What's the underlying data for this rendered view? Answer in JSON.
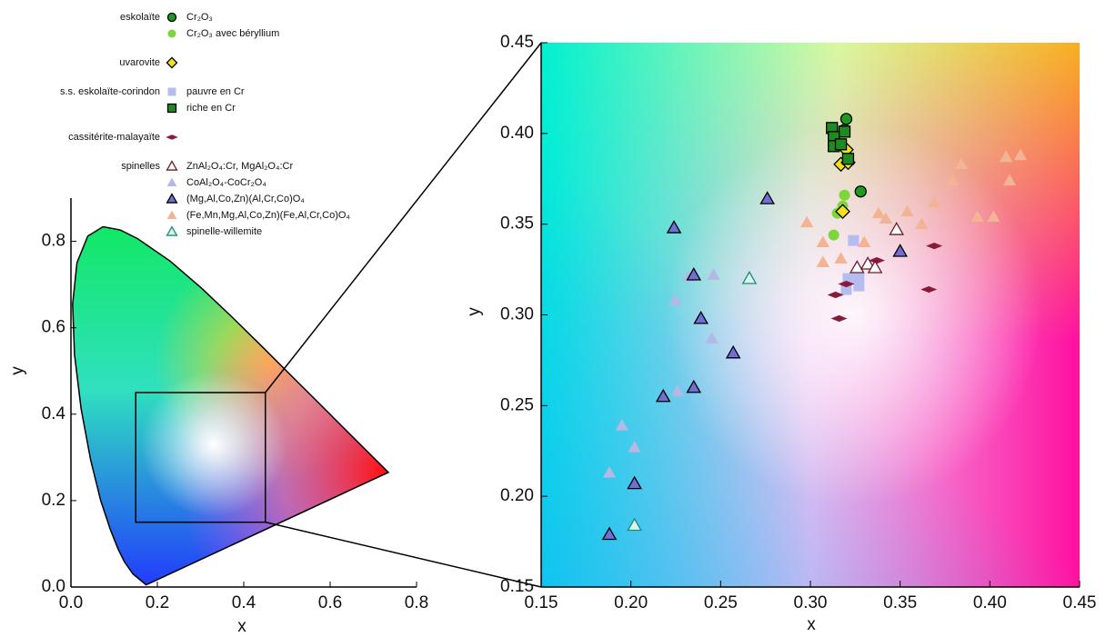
{
  "chart_data": [
    {
      "type": "line",
      "xlabel": "x",
      "ylabel": "y",
      "x": [
        0.1741,
        0.144,
        0.1241,
        0.1096,
        0.0913,
        0.0687,
        0.0454,
        0.0235,
        0.0082,
        0.0039,
        0.0139,
        0.0389,
        0.0743,
        0.1142,
        0.1547,
        0.2296,
        0.3016,
        0.3731,
        0.4441,
        0.5125,
        0.5752,
        0.627,
        0.6915,
        0.726,
        0.7347
      ],
      "values": [
        0.005,
        0.0297,
        0.0578,
        0.0868,
        0.1327,
        0.2007,
        0.295,
        0.4127,
        0.5384,
        0.6548,
        0.7502,
        0.812,
        0.8338,
        0.8262,
        0.8059,
        0.7543,
        0.6923,
        0.6245,
        0.5547,
        0.4866,
        0.4242,
        0.3725,
        0.3083,
        0.274,
        0.2653
      ],
      "color": "#000000",
      "xlim": [
        0,
        0.8
      ],
      "xticks": [
        {
          "value": 0,
          "label": "0.0"
        },
        0.2,
        0.4,
        0.6,
        0.8
      ],
      "ylim": [
        0,
        0.9
      ],
      "yticks": [
        {
          "value": 0,
          "label": "0.0"
        },
        0.2,
        0.4,
        0.6,
        0.8
      ]
    },
    {
      "type": "scatter",
      "xlabel": "x",
      "ylabel": "y",
      "xlim": [
        0.15,
        0.45
      ],
      "xticks": [
        0.15,
        {
          "value": 0.2,
          "label": "0.20"
        },
        0.25,
        {
          "value": 0.3,
          "label": "0.30"
        },
        0.35,
        {
          "value": 0.4,
          "label": "0.40"
        },
        0.45
      ],
      "ylim": [
        0.15,
        0.45
      ],
      "yticks": [
        0.15,
        {
          "value": 0.2,
          "label": "0.20"
        },
        0.25,
        {
          "value": 0.3,
          "label": "0.30"
        },
        0.35,
        {
          "value": 0.4,
          "label": "0.40"
        },
        0.45
      ],
      "groups": [
        {
          "name": "eskolaïte",
          "series": [
            {
              "name": "Cr₂O₃",
              "marker": "circle",
              "color": "#1f9a1f",
              "edgecolor": "#000000",
              "x": [
                0.32,
                0.328,
                0.319
              ],
              "values": [
                0.408,
                0.368,
                0.402
              ]
            },
            {
              "name": "Cr₂O₃ avec béryllium",
              "marker": "circle",
              "color": "#7fd63a",
              "x": [
                0.319,
                0.315,
                0.313,
                0.318
              ],
              "values": [
                0.366,
                0.356,
                0.344,
                0.36
              ]
            }
          ]
        },
        {
          "name": "uvarovite",
          "series": [
            {
              "name": "",
              "marker": "diamond",
              "color": "#f2e21e",
              "edgecolor": "#000000",
              "x": [
                0.317,
                0.32,
                0.318,
                0.321
              ],
              "values": [
                0.383,
                0.391,
                0.357,
                0.384
              ]
            }
          ]
        },
        {
          "name": "s.s. eskolaïte-corindon",
          "series": [
            {
              "name": "pauvre en Cr",
              "marker": "square",
              "color": "#b4bcf0",
              "x": [
                0.324,
                0.321,
                0.327,
                0.327,
                0.32
              ],
              "values": [
                0.341,
                0.32,
                0.316,
                0.32,
                0.314
              ]
            },
            {
              "name": "riche en Cr",
              "marker": "square",
              "color": "#1f8a1f",
              "edgecolor": "#000000",
              "x": [
                0.312,
                0.319,
                0.313,
                0.313,
                0.321,
                0.317
              ],
              "values": [
                0.403,
                0.401,
                0.398,
                0.393,
                0.386,
                0.394
              ]
            }
          ]
        },
        {
          "name": "cassitérite-malayaïte",
          "series": [
            {
              "name": "",
              "marker": "diamond-flat",
              "color": "#8a1a3a",
              "x": [
                0.314,
                0.316,
                0.32,
                0.337,
                0.369,
                0.366
              ],
              "values": [
                0.311,
                0.298,
                0.317,
                0.33,
                0.338,
                0.314
              ]
            }
          ]
        },
        {
          "name": "spinelles",
          "series": [
            {
              "name": "ZnAl₂O₄:Cr, MgAl₂O₄:Cr",
              "marker": "triangle",
              "color": "#ffffff",
              "edgecolor": "#6a1a2a",
              "x": [
                0.326,
                0.332,
                0.336,
                0.348
              ],
              "values": [
                0.326,
                0.328,
                0.326,
                0.347
              ]
            },
            {
              "name": "CoAl₂O₄-CoCr₂O₄",
              "marker": "triangle",
              "color": "#b4b8e4",
              "x": [
                0.188,
                0.195,
                0.202,
                0.225,
                0.226,
                0.232,
                0.245,
                0.246
              ],
              "values": [
                0.213,
                0.239,
                0.227,
                0.308,
                0.258,
                0.321,
                0.287,
                0.322
              ]
            },
            {
              "name": "(Mg,Al,Co,Zn)(Al,Cr,Co)O₄",
              "marker": "triangle",
              "color": "#7070d4",
              "edgecolor": "#000000",
              "x": [
                0.188,
                0.202,
                0.218,
                0.224,
                0.235,
                0.239,
                0.235,
                0.257,
                0.276,
                0.35
              ],
              "values": [
                0.179,
                0.207,
                0.255,
                0.348,
                0.322,
                0.298,
                0.26,
                0.279,
                0.364,
                0.335
              ]
            },
            {
              "name": "(Fe,Mn,Mg,Al,Co,Zn)(Fe,Al,Cr,Co)O₄",
              "marker": "triangle",
              "color": "#f2b494",
              "x": [
                0.298,
                0.307,
                0.307,
                0.317,
                0.33,
                0.338,
                0.342,
                0.354,
                0.362,
                0.369,
                0.379,
                0.384,
                0.393,
                0.402,
                0.409,
                0.411,
                0.417
              ],
              "values": [
                0.351,
                0.34,
                0.329,
                0.331,
                0.34,
                0.356,
                0.353,
                0.357,
                0.35,
                0.362,
                0.374,
                0.383,
                0.354,
                0.354,
                0.387,
                0.374,
                0.388
              ]
            },
            {
              "name": "spinelle-willemite",
              "marker": "triangle",
              "color": "#d8f4ec",
              "edgecolor": "#1a8a7a",
              "x": [
                0.202,
                0.266
              ],
              "values": [
                0.184,
                0.32
              ]
            }
          ]
        }
      ]
    }
  ]
}
